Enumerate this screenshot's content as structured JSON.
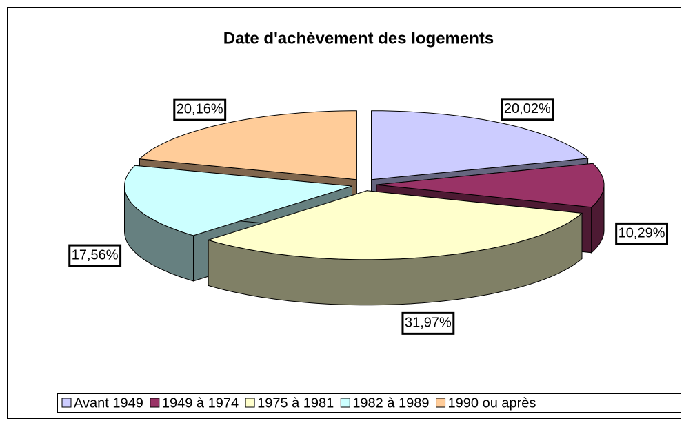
{
  "chart_data": {
    "type": "pie",
    "title": "Date d'achèvement des logements",
    "categories": [
      "Avant 1949",
      "1949 à 1974",
      "1975 à 1981",
      "1982 à 1989",
      "1990 ou après"
    ],
    "values": [
      20.02,
      10.29,
      31.97,
      17.56,
      20.16
    ],
    "value_labels": [
      "20,02%",
      "10,29%",
      "31,97%",
      "17,56%",
      "20,16%"
    ],
    "colors": [
      "#ccccff",
      "#993366",
      "#ffffcc",
      "#ccffff",
      "#ffcc99"
    ],
    "legend": "bottom",
    "three_d": true,
    "exploded": true
  }
}
